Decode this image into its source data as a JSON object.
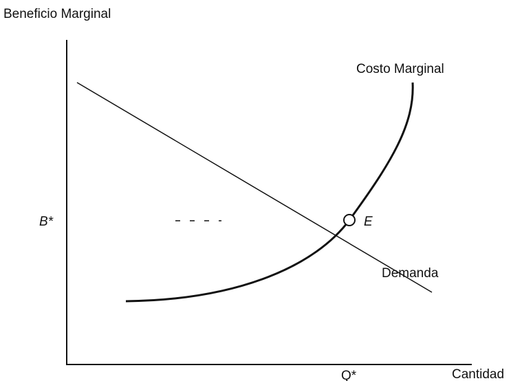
{
  "axes": {
    "y_label": "Beneficio Marginal",
    "x_label": "Cantidad"
  },
  "curves": {
    "marginal_cost": "Costo Marginal",
    "demand": "Demanda"
  },
  "equilibrium": {
    "label": "E",
    "price": "B*",
    "quantity": "Q*"
  }
}
